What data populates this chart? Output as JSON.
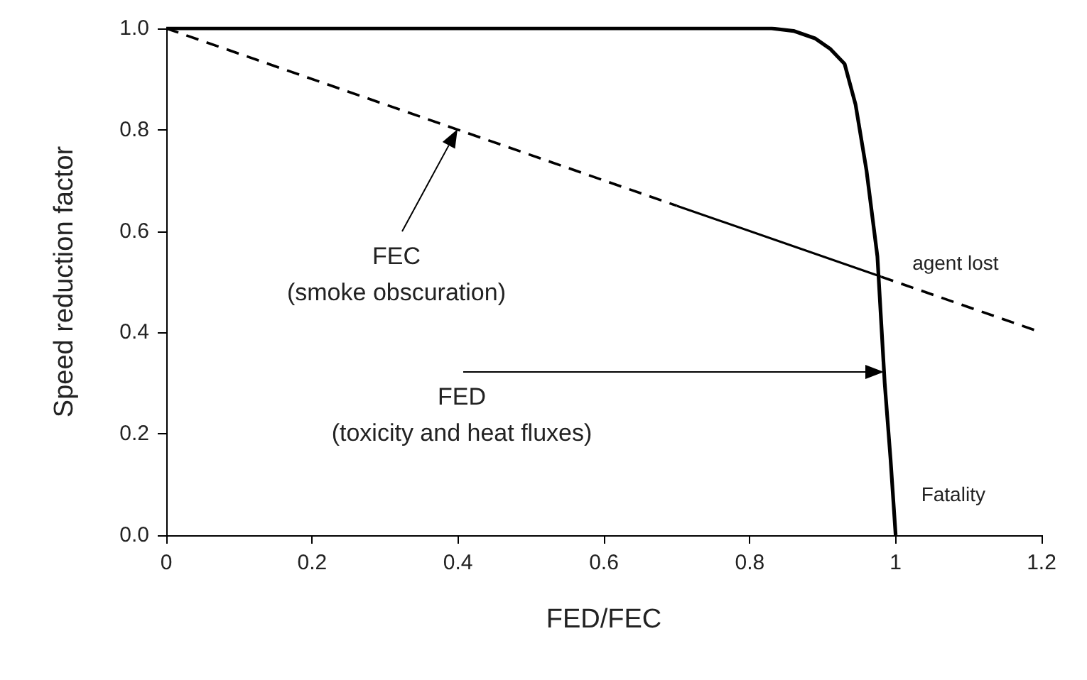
{
  "chart_data": {
    "type": "line",
    "xlabel": "FED/FEC",
    "ylabel": "Speed reduction factor",
    "xlim": [
      0,
      1.2
    ],
    "xticks": [
      0,
      0.2,
      0.4,
      0.6,
      0.8,
      1,
      1.2
    ],
    "ylim": [
      0,
      1.0
    ],
    "yticks": [
      {
        "value": 0,
        "label": "0.0"
      },
      {
        "value": 0.2,
        "label": "0.2"
      },
      {
        "value": 0.4,
        "label": "0.4"
      },
      {
        "value": 0.6,
        "label": "0.6"
      },
      {
        "value": 0.8,
        "label": "0.8"
      },
      {
        "value": 1.0,
        "label": "1.0"
      }
    ],
    "grid": false,
    "marker": "none",
    "series": [
      {
        "color": "#000000",
        "line_style": "solid",
        "x": [
          0,
          0.83,
          0.86,
          0.89,
          0.91,
          0.93,
          0.945,
          0.96,
          0.975,
          0.985,
          0.993,
          1.0
        ],
        "values": [
          1.0,
          1.0,
          0.995,
          0.98,
          0.96,
          0.93,
          0.85,
          0.72,
          0.55,
          0.3,
          0.15,
          0
        ]
      },
      {
        "color": "#000000",
        "line_style": "dashed",
        "x": [
          0,
          0.7
        ],
        "values": [
          1.0,
          0.65
        ]
      },
      {
        "color": "#000000",
        "line_style": "solid",
        "x": [
          0.7,
          0.98
        ],
        "values": [
          0.65,
          0.51
        ]
      },
      {
        "color": "#000000",
        "line_style": "dashed",
        "x": [
          0.98,
          1.2
        ],
        "values": [
          0.51,
          0.4
        ]
      }
    ],
    "annotations": [
      "FEC\n(smoke obscuration)",
      "FED\n(toxicity and heat fluxes)",
      {
        "text": "agent lost",
        "x": 0.98,
        "y": 0.51
      },
      {
        "text": "Fatality",
        "x": 1.0,
        "y": 0
      }
    ]
  }
}
